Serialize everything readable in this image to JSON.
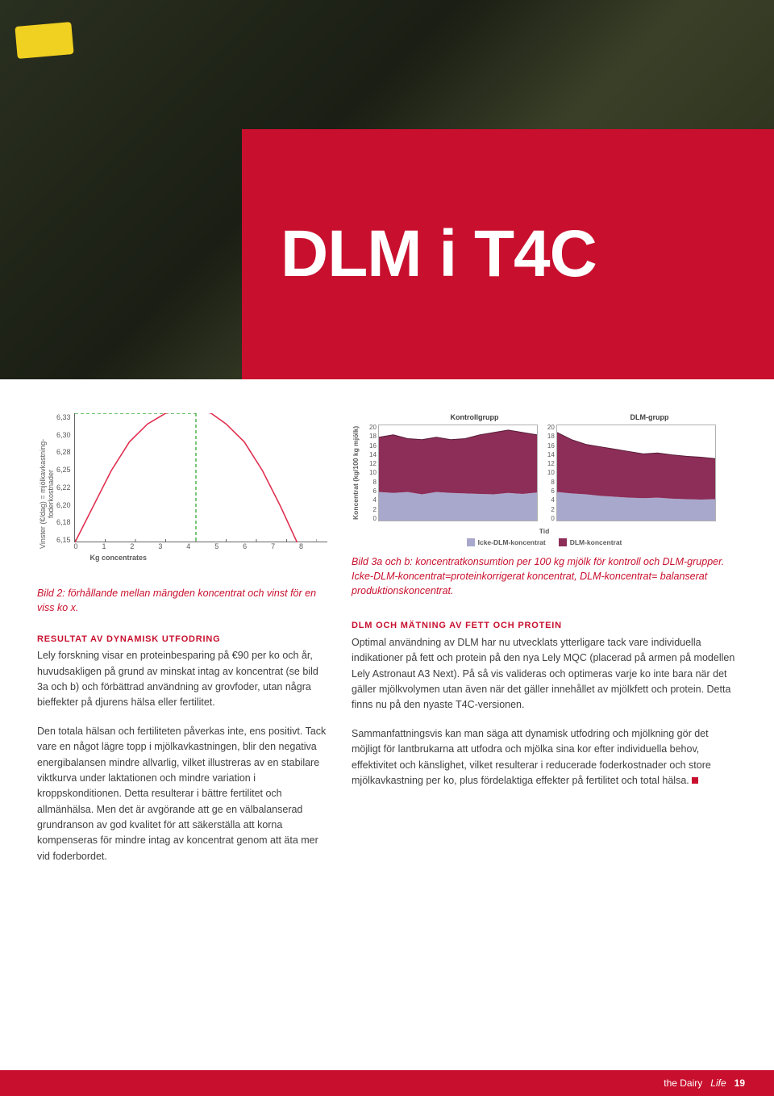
{
  "banner": {
    "title": "DLM i T4C"
  },
  "chart2": {
    "type": "line",
    "ylabel": "Vinster (€/dag) = mjölkavkastning- foderkostnader",
    "yticks": [
      "6,33",
      "6,30",
      "6,28",
      "6,25",
      "6,22",
      "6,20",
      "6,18",
      "6,15"
    ],
    "xticks": [
      "0",
      "1",
      "2",
      "3",
      "4",
      "5",
      "6",
      "7",
      "8"
    ],
    "xlabel": "Kg concentrates",
    "xlim": [
      0,
      8
    ],
    "ylim": [
      6.15,
      6.33
    ],
    "line_color": "#e03050",
    "vline_color": "#20a020",
    "vline_dash": "4,3",
    "hline_color": "#20a020",
    "hline_y": 6.33,
    "hline_dash": "4,3",
    "optimum_x": 4.0,
    "curve": [
      [
        0,
        6.15
      ],
      [
        0.6,
        6.2
      ],
      [
        1.2,
        6.25
      ],
      [
        1.8,
        6.29
      ],
      [
        2.4,
        6.315
      ],
      [
        3.0,
        6.33
      ],
      [
        3.5,
        6.335
      ],
      [
        4.0,
        6.335
      ],
      [
        4.5,
        6.33
      ],
      [
        5.0,
        6.315
      ],
      [
        5.6,
        6.29
      ],
      [
        6.2,
        6.25
      ],
      [
        6.8,
        6.2
      ],
      [
        7.4,
        6.145
      ],
      [
        8,
        6.1
      ]
    ]
  },
  "caption2": "Bild 2: förhållande mellan mängden koncentrat och vinst för en viss ko x.",
  "left": {
    "head1": "Resultat av dynamisk utfodring",
    "p1": "Lely forskning visar en proteinbesparing på €90 per ko och år, huvudsakligen på grund av minskat intag av koncentrat (se bild 3a och b) och förbättrad användning av grovfoder, utan några bieffekter på djurens hälsa eller fertilitet.",
    "p2": "Den totala hälsan och fertiliteten påverkas inte, ens positivt. Tack vare en något lägre topp i mjölkavkastningen, blir den negativa energibalansen mindre allvarlig, vilket illustreras av en stabilare viktkurva under laktationen och mindre variation i kroppskonditionen. Detta resulterar i bättre fertilitet och allmänhälsa. Men det är avgörande att ge en välbalanserad grundranson av god kvalitet för att säkerställa att korna kompenseras för mindre intag av koncentrat genom att äta mer vid foderbordet."
  },
  "area": {
    "type": "area",
    "ylabel": "Koncentrat (kg/100 kg mjölk)",
    "yticks": [
      "20",
      "18",
      "16",
      "14",
      "12",
      "10",
      "8",
      "6",
      "4",
      "2",
      "0"
    ],
    "ymax": 20,
    "time_label": "Tid",
    "group_a": "Kontrollgrupp",
    "group_b": "DLM-grupp",
    "legend_a": "Icke-DLM-koncentrat",
    "legend_b": "DLM-koncentrat",
    "color_bottom": "#a8a8cc",
    "color_top": "#8c2e58",
    "control_bottom": [
      6.0,
      5.8,
      6.0,
      5.5,
      6.0,
      5.8,
      5.7,
      5.6,
      5.5,
      5.8,
      5.6,
      5.9
    ],
    "control_top": [
      17.5,
      18.0,
      17.2,
      17.0,
      17.5,
      17.0,
      17.2,
      18.0,
      18.5,
      19.0,
      18.5,
      18.0
    ],
    "dlm_bottom": [
      6.0,
      5.7,
      5.5,
      5.2,
      5.0,
      4.8,
      4.7,
      4.8,
      4.6,
      4.5,
      4.4,
      4.5
    ],
    "dlm_top": [
      18.5,
      17.0,
      16.0,
      15.5,
      15.0,
      14.5,
      14.0,
      14.2,
      13.8,
      13.5,
      13.3,
      13.0
    ]
  },
  "right_caption": "Bild 3a och b: koncentratkonsumtion per 100 kg mjölk för kontroll och DLM-grupper. Icke-DLM-koncentrat=proteinkorrigerat koncentrat, DLM-koncentrat= balanserat produktionskoncentrat.",
  "right": {
    "head1": "DLM och mätning av fett och protein",
    "p1": "Optimal användning av DLM har nu utvecklats ytterligare tack vare individuella indikationer på fett och protein på den nya Lely MQC (placerad på armen på modellen Lely Astronaut A3 Next). På så vis valideras och optimeras varje ko inte bara när det gäller mjölkvolymen utan även när det gäller innehållet av mjölkfett och protein. Detta finns nu på den nyaste T4C-versionen.",
    "p2": "Sammanfattningsvis kan man säga att dynamisk utfodring och mjölkning gör det möjligt för lantbrukarna att utfodra och mjölka sina kor efter individuella behov, effektivitet och känslighet, vilket resulterar i reducerade foderkostnader och store mjölkavkastning per ko, plus fördelaktiga effekter på fertilitet och total hälsa."
  },
  "footer": {
    "brand_prefix": "the Dairy",
    "brand_suffix": "Life",
    "page": "19"
  },
  "colors": {
    "brand_red": "#c8102e",
    "text": "#404040"
  }
}
